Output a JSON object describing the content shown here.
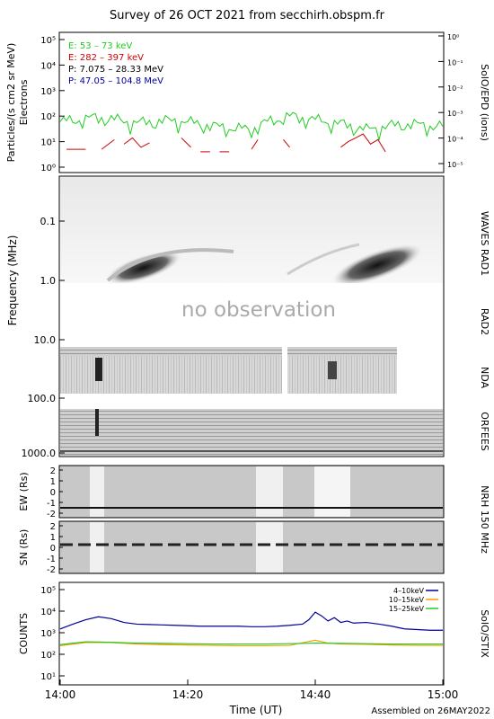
{
  "header": {
    "title": "Survey of 26 OCT 2021 from secchirh.obspm.fr",
    "footer": "Assembled on 26MAY2022"
  },
  "colors": {
    "frame": "#000000",
    "green": "#22cc22",
    "red": "#cc0000",
    "blue": "#000099",
    "orange": "#ff9900",
    "grey_text": "#aaaaaa"
  },
  "chart_data": [
    {
      "id": "epd",
      "type": "line",
      "ylabel": "Particles/(s cm2 sr MeV)",
      "ylabel2": "Electrons",
      "right_label": "SolO/EPD (ions)",
      "ylim": [
        0.5,
        100000
      ],
      "ylog": true,
      "yticks": [
        "10⁰",
        "10¹",
        "10²",
        "10³",
        "10⁴",
        "10⁵"
      ],
      "ylim_right": [
        1e-06,
        1
      ],
      "yticks_right": [
        "10⁻⁵",
        "10⁻⁴",
        "10⁻³",
        "10⁻²",
        "10⁻¹",
        "10⁰"
      ],
      "legend": [
        {
          "label": "E: 53 – 73 keV",
          "color": "#22cc22"
        },
        {
          "label": "E: 282 – 397 keV",
          "color": "#cc0000"
        },
        {
          "label": "P: 7.075 – 28.33 MeV",
          "color": "#000000"
        },
        {
          "label": "P: 47.05 – 104.8 MeV",
          "color": "#000099"
        }
      ],
      "series": [
        {
          "name": "E: 53 – 73 keV",
          "color": "#22cc22",
          "x_min": [
            0,
            6,
            12,
            18,
            24,
            30,
            36,
            42,
            48,
            54,
            60
          ],
          "values": [
            60,
            90,
            55,
            70,
            40,
            30,
            100,
            60,
            30,
            50,
            40
          ]
        },
        {
          "name": "E: 282 – 397 keV",
          "color": "#cc0000",
          "segments": [
            {
              "x_min": [
                1,
                4
              ],
              "values": [
                5,
                5
              ]
            },
            {
              "x_min": [
                6.5,
                8.5
              ],
              "values": [
                5,
                12
              ]
            },
            {
              "x_min": [
                10,
                14
              ],
              "values": [
                8,
                14,
                6,
                9
              ]
            },
            {
              "x_min": [
                19,
                20.5
              ],
              "values": [
                14,
                6
              ]
            },
            {
              "x_min": [
                22,
                23.5
              ],
              "values": [
                4,
                4
              ]
            },
            {
              "x_min": [
                25,
                26.5
              ],
              "values": [
                4,
                4
              ]
            },
            {
              "x_min": [
                30,
                31
              ],
              "values": [
                5,
                12
              ]
            },
            {
              "x_min": [
                35,
                36
              ],
              "values": [
                12,
                6
              ]
            },
            {
              "x_min": [
                44,
                51
              ],
              "values": [
                6,
                10,
                14,
                20,
                8,
                12,
                4
              ]
            }
          ]
        }
      ]
    },
    {
      "id": "radio",
      "type": "heatmap",
      "ylabel": "Frequency (MHz)",
      "ylog": true,
      "yticks": [
        "0.1",
        "1.0",
        "10.0",
        "100.0",
        "1000.0"
      ],
      "right_labels": [
        "WAVES RAD1",
        "RAD2",
        "NDA",
        "ORFEES"
      ],
      "no_data_text": "no observation"
    },
    {
      "id": "nrh_ew",
      "type": "heatmap",
      "ylabel": "EW (Rs)",
      "yticks": [
        "2",
        "1",
        "0",
        "-1",
        "-2"
      ],
      "right_label": "NRH 150 MHz"
    },
    {
      "id": "nrh_sn",
      "type": "heatmap",
      "ylabel": "SN (Rs)",
      "yticks": [
        "2",
        "1",
        "0",
        "-1",
        "-2"
      ]
    },
    {
      "id": "stix",
      "type": "line",
      "ylabel": "COUNTS",
      "right_label": "SolO/STIX",
      "ylog": true,
      "ylim": [
        10,
        100000
      ],
      "yticks": [
        "10¹",
        "10²",
        "10³",
        "10⁴",
        "10⁵"
      ],
      "xlabel": "Time (UT)",
      "xticks": [
        "14:00",
        "14:20",
        "14:40",
        "15:00"
      ],
      "legend": [
        {
          "label": "4–10keV",
          "color": "#000099"
        },
        {
          "label": "10–15keV",
          "color": "#ff9900"
        },
        {
          "label": "15–25keV",
          "color": "#22cc22"
        }
      ],
      "series": [
        {
          "name": "4–10keV",
          "color": "#000099",
          "x_min": [
            0,
            2,
            4,
            6,
            8,
            10,
            12,
            14,
            16,
            18,
            20,
            22,
            24,
            26,
            28,
            30,
            32,
            34,
            36,
            38,
            39,
            40,
            41,
            42,
            43,
            44,
            45,
            46,
            48,
            50,
            52,
            54,
            56,
            58,
            60
          ],
          "values": [
            1500,
            2500,
            4000,
            5500,
            4500,
            3000,
            2500,
            2400,
            2300,
            2200,
            2100,
            2000,
            2000,
            2000,
            2000,
            1900,
            1900,
            2000,
            2200,
            2500,
            4000,
            9000,
            6000,
            3500,
            5000,
            3000,
            3500,
            2800,
            3000,
            2500,
            2000,
            1500,
            1400,
            1300,
            1300
          ]
        },
        {
          "name": "10–15keV",
          "color": "#ff9900",
          "x_min": [
            0,
            4,
            8,
            12,
            16,
            20,
            24,
            28,
            32,
            36,
            40,
            42,
            44,
            48,
            52,
            56,
            60
          ],
          "values": [
            250,
            350,
            350,
            300,
            280,
            270,
            260,
            250,
            250,
            260,
            450,
            330,
            300,
            290,
            270,
            260,
            260
          ]
        },
        {
          "name": "15–25keV",
          "color": "#22cc22",
          "x_min": [
            0,
            4,
            8,
            12,
            16,
            20,
            24,
            28,
            32,
            36,
            40,
            44,
            48,
            52,
            56,
            60
          ],
          "values": [
            280,
            380,
            360,
            330,
            320,
            310,
            300,
            300,
            300,
            310,
            330,
            320,
            310,
            300,
            300,
            300
          ]
        }
      ]
    }
  ]
}
